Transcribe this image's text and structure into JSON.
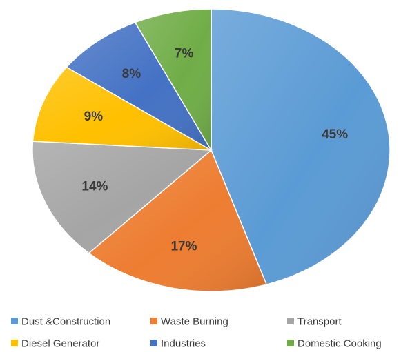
{
  "chart_data": {
    "type": "pie",
    "categories": [
      "Dust &Construction",
      "Waste Burning",
      "Transport",
      "Diesel Generator",
      "Industries",
      "Domestic Cooking"
    ],
    "values": [
      45,
      17,
      14,
      9,
      8,
      7
    ],
    "labels": [
      "45%",
      "17%",
      "14%",
      "9%",
      "8%",
      "7%"
    ],
    "colors": [
      "#5b9bd5",
      "#ed7d31",
      "#a5a5a5",
      "#ffc000",
      "#4472c4",
      "#70ad47"
    ],
    "start_angle_deg": 0,
    "direction": "clockwise",
    "legend_position": "bottom",
    "title": ""
  }
}
